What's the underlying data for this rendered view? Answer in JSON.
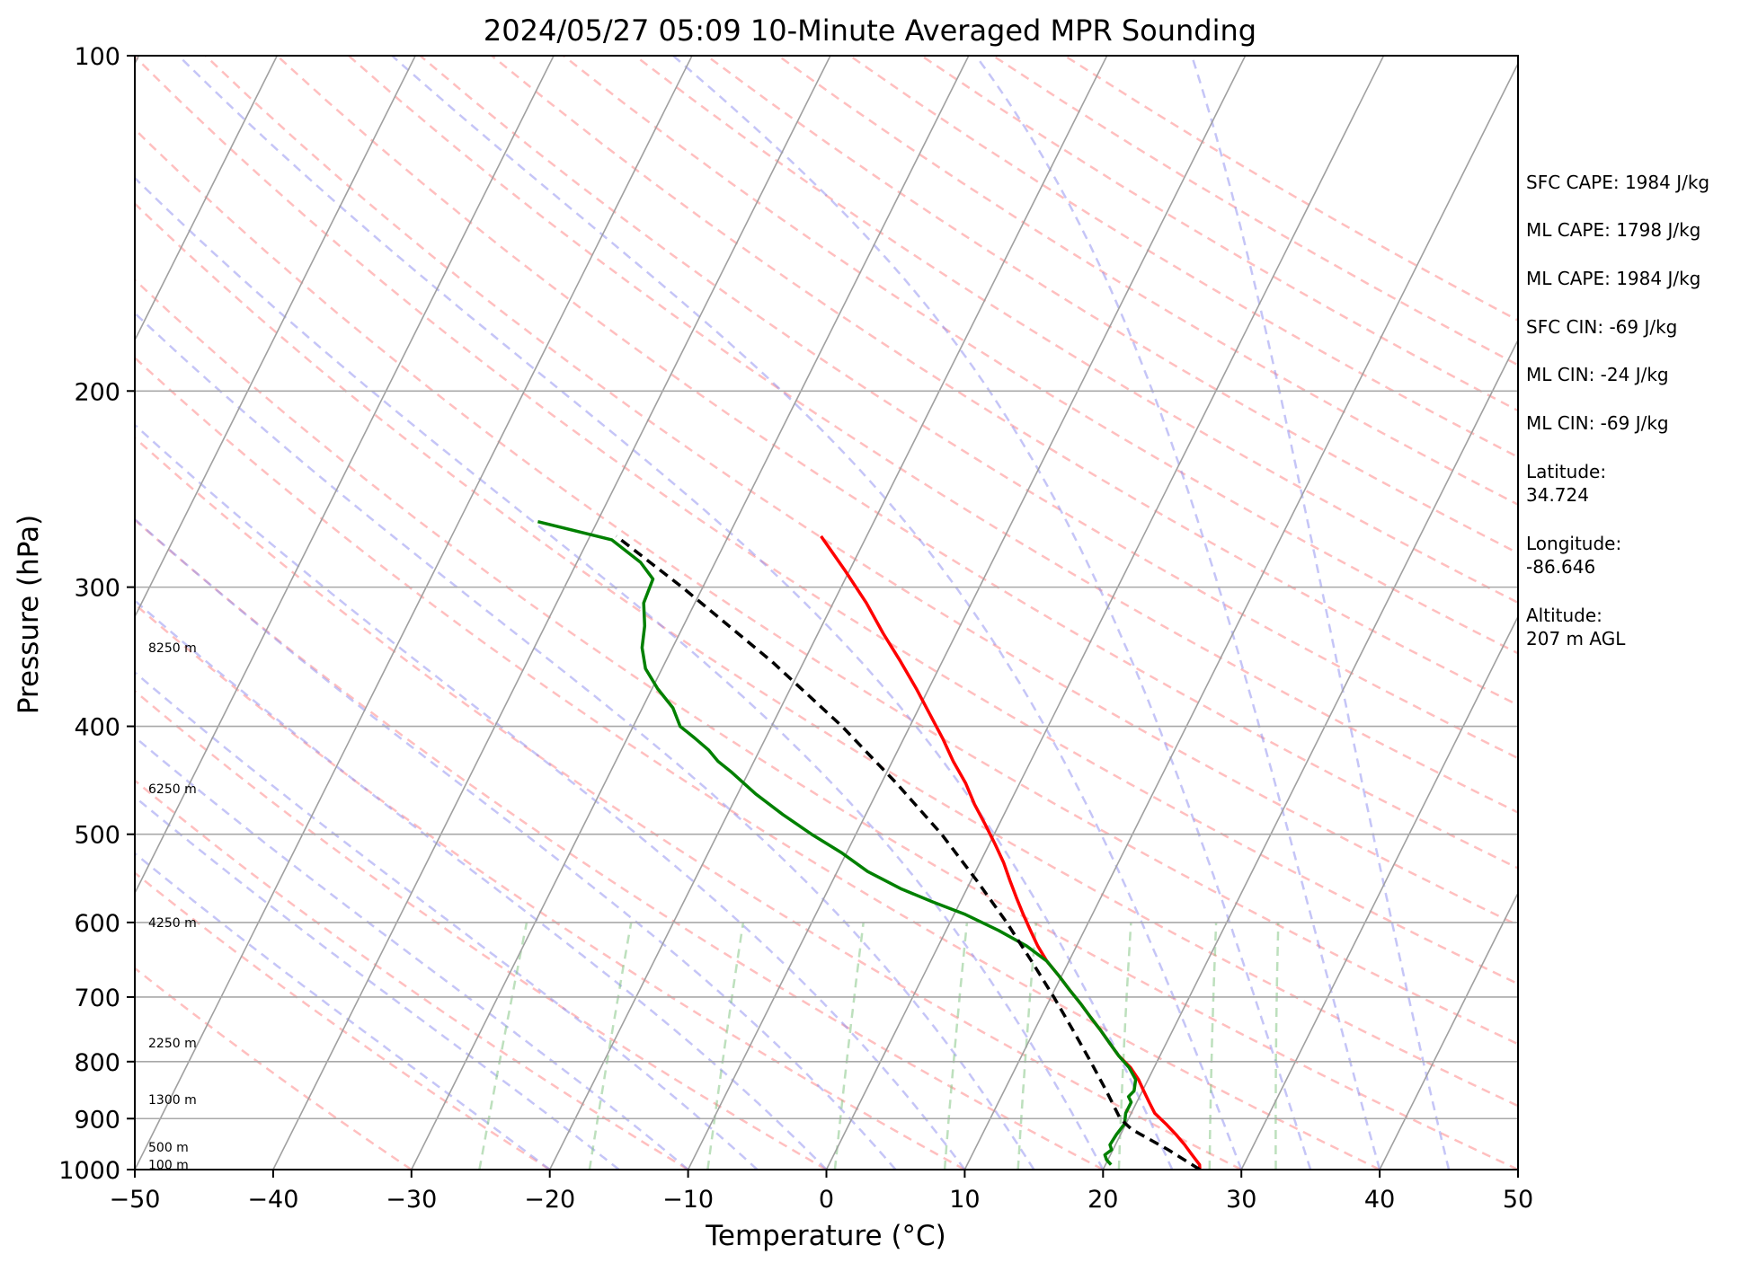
{
  "chart_data": {
    "type": "skew-t",
    "title": "2024/05/27 05:09 10-Minute Averaged MPR Sounding",
    "xlabel": "Temperature (°C)",
    "ylabel": "Pressure (hPa)",
    "xlim": [
      -50,
      50
    ],
    "ylim": [
      1000,
      100
    ],
    "y_scale": "log",
    "grid": true,
    "x_ticks": [
      -50,
      -40,
      -30,
      -20,
      -10,
      0,
      10,
      20,
      30,
      40,
      50
    ],
    "x_tick_labels": [
      "−50",
      "−40",
      "−30",
      "−20",
      "−10",
      "0",
      "10",
      "20",
      "30",
      "40",
      "50"
    ],
    "y_ticks": [
      1000,
      900,
      800,
      700,
      600,
      500,
      400,
      300,
      200,
      100
    ],
    "y_tick_labels": [
      "1000",
      "900",
      "800",
      "700",
      "600",
      "500",
      "400",
      "300",
      "200",
      "100"
    ],
    "height_labels": [
      {
        "text": "100 m",
        "p": 990
      },
      {
        "text": "500 m",
        "p": 955
      },
      {
        "text": "1300 m",
        "p": 865
      },
      {
        "text": "2250 m",
        "p": 770
      },
      {
        "text": "4250 m",
        "p": 600
      },
      {
        "text": "6250 m",
        "p": 455
      },
      {
        "text": "8250 m",
        "p": 340
      }
    ],
    "series": [
      {
        "color": "#ff0000",
        "points": [
          [
            1000,
            27.0
          ],
          [
            990,
            26.8
          ],
          [
            970,
            25.9
          ],
          [
            950,
            25.0
          ],
          [
            930,
            24.0
          ],
          [
            910,
            22.9
          ],
          [
            890,
            21.7
          ],
          [
            870,
            20.9
          ],
          [
            850,
            20.1
          ],
          [
            830,
            19.3
          ],
          [
            810,
            18.3
          ],
          [
            790,
            17.0
          ],
          [
            770,
            15.9
          ],
          [
            750,
            14.8
          ],
          [
            730,
            13.6
          ],
          [
            710,
            12.4
          ],
          [
            690,
            11.1
          ],
          [
            670,
            9.8
          ],
          [
            650,
            8.4
          ],
          [
            630,
            7.2
          ],
          [
            610,
            6.1
          ],
          [
            590,
            5.0
          ],
          [
            570,
            3.9
          ],
          [
            550,
            2.8
          ],
          [
            530,
            1.7
          ],
          [
            510,
            0.4
          ],
          [
            490,
            -1.0
          ],
          [
            470,
            -2.5
          ],
          [
            450,
            -3.9
          ],
          [
            430,
            -5.6
          ],
          [
            410,
            -7.2
          ],
          [
            390,
            -9.0
          ],
          [
            370,
            -10.9
          ],
          [
            350,
            -13.0
          ],
          [
            330,
            -15.3
          ],
          [
            310,
            -17.6
          ],
          [
            290,
            -20.3
          ],
          [
            270,
            -23.3
          ]
        ]
      },
      {
        "color": "#008000",
        "points": [
          [
            990,
            20.4
          ],
          [
            980,
            19.9
          ],
          [
            970,
            19.6
          ],
          [
            960,
            19.9
          ],
          [
            950,
            19.6
          ],
          [
            930,
            19.7
          ],
          [
            910,
            19.9
          ],
          [
            890,
            19.6
          ],
          [
            870,
            19.6
          ],
          [
            860,
            19.2
          ],
          [
            850,
            19.4
          ],
          [
            830,
            19.1
          ],
          [
            810,
            18.2
          ],
          [
            790,
            17.0
          ],
          [
            770,
            15.9
          ],
          [
            750,
            14.8
          ],
          [
            730,
            13.6
          ],
          [
            710,
            12.4
          ],
          [
            690,
            11.1
          ],
          [
            670,
            9.8
          ],
          [
            650,
            8.4
          ],
          [
            630,
            6.4
          ],
          [
            610,
            3.8
          ],
          [
            590,
            0.8
          ],
          [
            575,
            -2.0
          ],
          [
            560,
            -4.7
          ],
          [
            540,
            -7.8
          ],
          [
            520,
            -10.3
          ],
          [
            500,
            -13.2
          ],
          [
            480,
            -16.0
          ],
          [
            460,
            -18.7
          ],
          [
            440,
            -21.2
          ],
          [
            430,
            -22.6
          ],
          [
            420,
            -23.7
          ],
          [
            410,
            -25.1
          ],
          [
            400,
            -26.6
          ],
          [
            385,
            -27.8
          ],
          [
            370,
            -29.6
          ],
          [
            355,
            -31.2
          ],
          [
            340,
            -32.2
          ],
          [
            325,
            -32.8
          ],
          [
            310,
            -33.7
          ],
          [
            295,
            -33.9
          ],
          [
            285,
            -35.4
          ],
          [
            272,
            -38.3
          ],
          [
            262,
            -44.3
          ]
        ]
      },
      {
        "color": "#000000",
        "dashed": true,
        "points": [
          [
            1000,
            27.0
          ],
          [
            960,
            24.0
          ],
          [
            920,
            20.6
          ],
          [
            900,
            19.4
          ],
          [
            850,
            17.4
          ],
          [
            800,
            15.2
          ],
          [
            750,
            12.8
          ],
          [
            700,
            10.2
          ],
          [
            650,
            7.3
          ],
          [
            600,
            4.1
          ],
          [
            550,
            0.4
          ],
          [
            500,
            -3.8
          ],
          [
            450,
            -8.9
          ],
          [
            400,
            -14.9
          ],
          [
            350,
            -22.3
          ],
          [
            300,
            -31.5
          ],
          [
            270,
            -38.1
          ]
        ]
      }
    ]
  },
  "info_panel": {
    "sfc_cape": "SFC CAPE: 1984 J/kg",
    "ml_cape_1": "ML CAPE: 1798 J/kg",
    "ml_cape_2": "ML CAPE: 1984 J/kg",
    "sfc_cin": "SFC CIN: -69 J/kg",
    "ml_cin_1": "ML CIN: -24 J/kg",
    "ml_cin_2": "ML CIN: -69 J/kg",
    "latitude_label": "Latitude:",
    "latitude_value": "34.724",
    "longitude_label": "Longitude:",
    "longitude_value": "-86.646",
    "altitude_label": "Altitude:",
    "altitude_value": "207 m AGL"
  }
}
